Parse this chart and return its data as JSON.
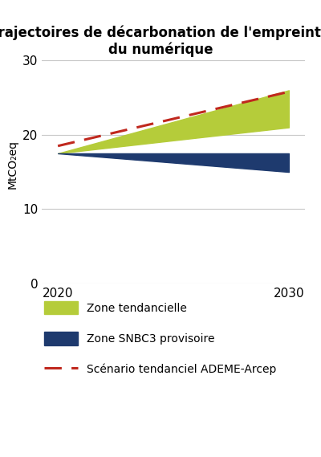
{
  "title": "Trajectoires de décarbonation de l'empreinte\ndu numérique",
  "ylabel": "MtCO₂eq",
  "years": [
    2020,
    2030
  ],
  "xticks": [
    2020,
    2030
  ],
  "yticks": [
    0,
    10,
    20,
    30
  ],
  "ylim": [
    0,
    32
  ],
  "xlim": [
    2019.3,
    2030.7
  ],
  "green_lower": [
    17.5,
    21.0
  ],
  "green_upper": [
    17.5,
    26.0
  ],
  "blue_upper": [
    17.5,
    17.5
  ],
  "blue_lower": [
    17.5,
    15.0
  ],
  "red_line_x": [
    2020,
    2030
  ],
  "red_line_y": [
    18.5,
    25.8
  ],
  "green_color": "#b5cc3a",
  "blue_color": "#1e3a6e",
  "red_color": "#c0281e",
  "legend_green": "Zone tendancielle",
  "legend_blue": "Zone SNBC3 provisoire",
  "legend_red": "Scénario tendanciel ADEME-Arcep",
  "title_fontsize": 12,
  "label_fontsize": 10,
  "tick_fontsize": 11,
  "legend_fontsize": 10,
  "bg_color": "#ffffff",
  "grid_color": "#c8c8c8"
}
